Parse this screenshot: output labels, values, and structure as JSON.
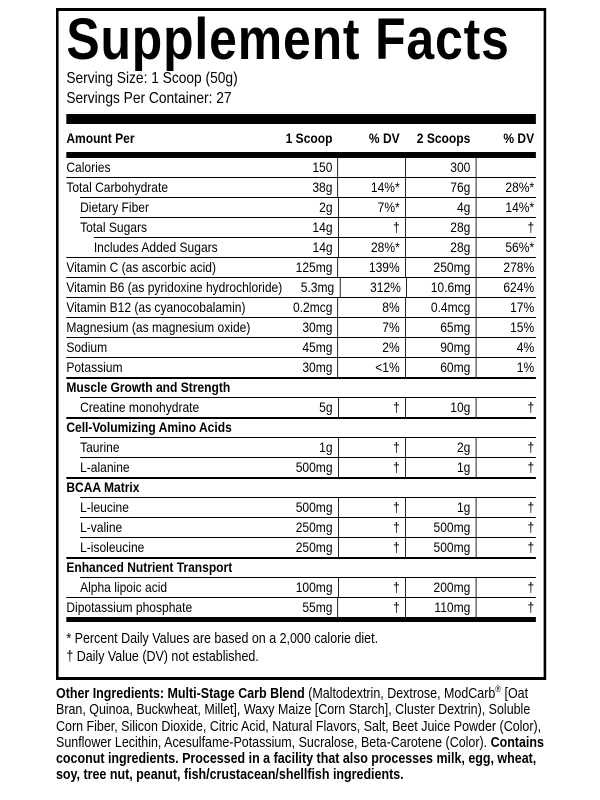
{
  "title": "Supplement Facts",
  "serving_size": "Serving Size: 1 Scoop (50g)",
  "servings_per_container": "Servings Per Container: 27",
  "table": {
    "header": [
      "Amount Per",
      "1 Scoop",
      "% DV",
      "2 Scoops",
      "% DV"
    ],
    "rows": [
      {
        "cells": [
          "Calories",
          "150",
          null,
          "300",
          null
        ]
      },
      {
        "cells": [
          "Total Carbohydrate",
          "38g",
          "14%*",
          "76g",
          "28%*"
        ],
        "rows": [
          {
            "cells": [
              "Dietary Fiber",
              "2g",
              "7%*",
              "4g",
              "14%*"
            ]
          },
          {
            "cells": [
              "Total Sugars",
              "14g",
              "†",
              "28g",
              "†"
            ],
            "rows": [
              {
                "cells": [
                  "Includes Added Sugars",
                  "14g",
                  "28%*",
                  "28g",
                  "56%*"
                ]
              }
            ]
          }
        ]
      },
      {
        "cells": [
          "Vitamin C (as ascorbic acid)",
          "125mg",
          "139%",
          "250mg",
          "278%"
        ]
      },
      {
        "cells": [
          "Vitamin B6 (as pyridoxine hydrochloride)",
          "5.3mg",
          "312%",
          "10.6mg",
          "624%"
        ]
      },
      {
        "cells": [
          "Vitamin B12 (as cyanocobalamin)",
          "0.2mcg",
          "8%",
          "0.4mcg",
          "17%"
        ]
      },
      {
        "cells": [
          "Magnesium (as magnesium oxide)",
          "30mg",
          "7%",
          "65mg",
          "15%"
        ]
      },
      {
        "cells": [
          "Sodium",
          "45mg",
          "2%",
          "90mg",
          "4%"
        ]
      },
      {
        "cells": [
          "Potassium",
          "30mg",
          "<1%",
          "60mg",
          "1%"
        ]
      },
      {
        "heading": "Muscle Growth and Strength",
        "rows": [
          {
            "cells": [
              "Creatine monohydrate",
              "5g",
              "†",
              "10g",
              "†"
            ]
          }
        ]
      },
      {
        "heading": "Cell-Volumizing Amino Acids",
        "rows": [
          {
            "cells": [
              "Taurine",
              "1g",
              "†",
              "2g",
              "†"
            ]
          },
          {
            "cells": [
              "L-alanine",
              "500mg",
              "†",
              "1g",
              "†"
            ]
          }
        ]
      },
      {
        "heading": "BCAA Matrix",
        "rows": [
          {
            "cells": [
              "L-leucine",
              "500mg",
              "†",
              "1g",
              "†"
            ]
          },
          {
            "cells": [
              "L-valine",
              "250mg",
              "†",
              "500mg",
              "†"
            ]
          },
          {
            "cells": [
              "L-isoleucine",
              "250mg",
              "†",
              "500mg",
              "†"
            ]
          }
        ]
      },
      {
        "heading": "Enhanced Nutrient Transport",
        "rows": [
          {
            "cells": [
              "Alpha lipoic acid",
              "100mg",
              "†",
              "200mg",
              "†"
            ]
          }
        ]
      },
      {
        "cells": [
          "Dipotassium phosphate",
          "55mg",
          "†",
          "110mg",
          "†"
        ]
      }
    ]
  },
  "footnotes": [
    "* Percent Daily Values are based on a 2,000 calorie diet.",
    "† Daily Value (DV) not established."
  ],
  "other_ingredients": [
    {
      "text": "Other Ingredients: Multi-Stage Carb Blend",
      "bold": true
    },
    {
      "text": " (Maltodextrin, Dextrose, ModCarb"
    },
    {
      "text": "®",
      "sup": true
    },
    {
      "text": " [Oat Bran, Quinoa, Buckwheat, Millet], Waxy Maize [Corn Starch], Cluster Dextrin), Soluble Corn Fiber, Silicon Dioxide, Citric Acid, Natural Flavors, Salt, Beet Juice Powder (Color), Sunflower Lecithin, Acesulfame-Potassium, Sucralose, Beta-Carotene (Color). "
    },
    {
      "text": "Contains coconut ingredients. Processed in a facility that also processes milk, egg, wheat, soy, tree nut, peanut, fish/crustacean/shellfish ingredients.",
      "bold": true
    }
  ]
}
